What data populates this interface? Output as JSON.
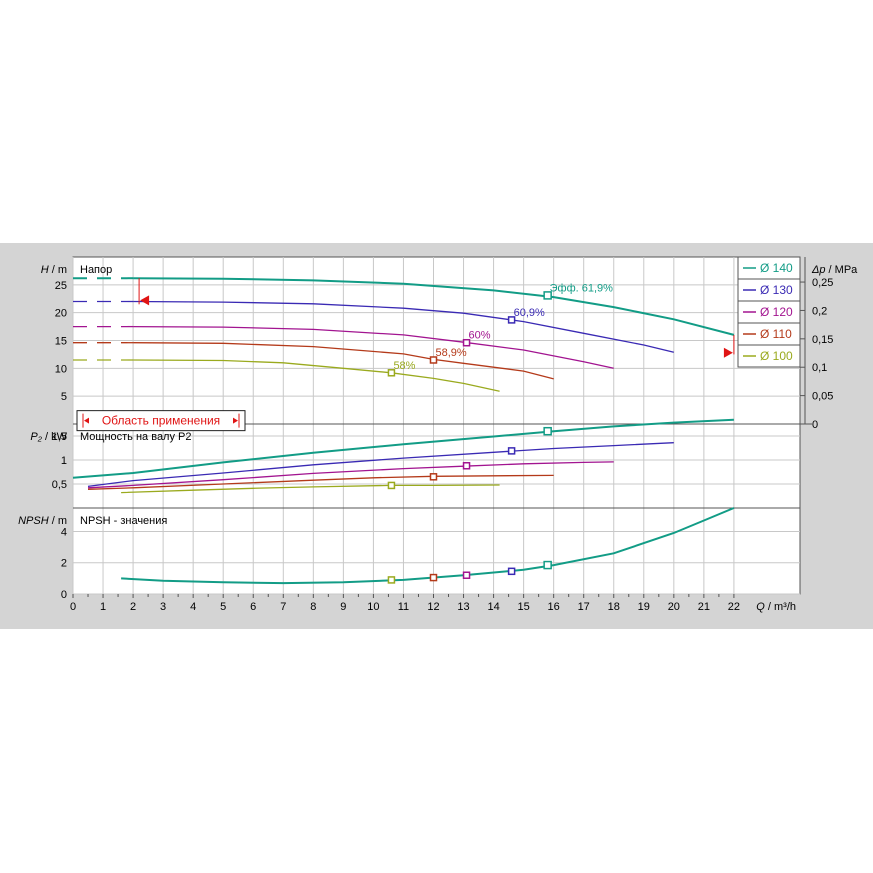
{
  "chart_data": {
    "type": "line",
    "x_axis": {
      "label_var": "Q",
      "label_unit": "m³/h",
      "ticks": [
        0,
        1,
        2,
        3,
        4,
        5,
        6,
        7,
        8,
        9,
        10,
        11,
        12,
        13,
        14,
        15,
        16,
        17,
        18,
        19,
        20,
        21,
        22
      ],
      "range": [
        0,
        24.2
      ]
    },
    "panels": {
      "head": {
        "title": "Напор",
        "y_var": "H",
        "y_unit": "m",
        "ticks": [
          5,
          10,
          15,
          20,
          25
        ],
        "range": [
          0,
          30
        ],
        "right_axis": {
          "var": "Δp",
          "unit": "MPa",
          "ticks": [
            "0",
            "0,05",
            "0,1",
            "0,15",
            "0,2",
            "0,25"
          ]
        },
        "application_range_label": "Область применения"
      },
      "power": {
        "title": "Мощность на валу P2",
        "y_var": "P₂",
        "y_unit": "kW",
        "ticks": [
          "0,5",
          "1",
          "1,5"
        ],
        "tick_values": [
          0.5,
          1,
          1.5
        ],
        "range": [
          0,
          1.75
        ]
      },
      "npsh": {
        "title": "NPSH - значения",
        "y_var": "NPSH",
        "y_unit": "m",
        "ticks": [
          0,
          2,
          4
        ],
        "range": [
          0,
          5.5
        ]
      }
    },
    "legend": {
      "position": "top-right",
      "entries": [
        "Ø 140",
        "Ø 130",
        "Ø 120",
        "Ø 110",
        "Ø 100"
      ]
    },
    "series": [
      {
        "name": "Ø 140",
        "color": "#129c86",
        "head": [
          [
            0,
            26.2
          ],
          [
            2,
            26.2
          ],
          [
            5,
            26.1
          ],
          [
            8,
            25.8
          ],
          [
            11,
            25.2
          ],
          [
            14,
            24.0
          ],
          [
            16,
            22.8
          ],
          [
            18,
            21.0
          ],
          [
            20,
            18.8
          ],
          [
            22,
            16.0
          ]
        ],
        "power": [
          [
            0,
            0.63
          ],
          [
            2,
            0.73
          ],
          [
            5,
            0.95
          ],
          [
            8,
            1.15
          ],
          [
            11,
            1.33
          ],
          [
            14,
            1.49
          ],
          [
            16,
            1.6
          ],
          [
            18,
            1.7
          ],
          [
            20,
            1.78
          ],
          [
            22,
            1.84
          ]
        ],
        "npsh": [
          [
            1.6,
            1.0
          ],
          [
            3,
            0.85
          ],
          [
            5,
            0.75
          ],
          [
            7,
            0.7
          ],
          [
            9,
            0.75
          ],
          [
            11,
            0.9
          ],
          [
            13,
            1.2
          ],
          [
            15,
            1.55
          ],
          [
            16,
            1.85
          ],
          [
            18,
            2.6
          ],
          [
            20,
            3.9
          ],
          [
            21,
            4.7
          ],
          [
            22,
            5.5
          ]
        ],
        "bep": {
          "label": "Эфф.  61,9%",
          "q": 15.8,
          "h": 23.1,
          "p": 1.6,
          "npsh": 1.85
        }
      },
      {
        "name": "Ø 130",
        "color": "#3a2ab4",
        "head": [
          [
            0,
            22.0
          ],
          [
            2,
            22.0
          ],
          [
            5,
            21.9
          ],
          [
            8,
            21.6
          ],
          [
            11,
            20.8
          ],
          [
            13,
            19.9
          ],
          [
            15,
            18.4
          ],
          [
            17,
            16.3
          ],
          [
            19,
            14.2
          ],
          [
            20,
            12.9
          ]
        ],
        "power": [
          [
            0.5,
            0.45
          ],
          [
            2,
            0.57
          ],
          [
            5,
            0.73
          ],
          [
            8,
            0.9
          ],
          [
            11,
            1.04
          ],
          [
            14,
            1.16
          ],
          [
            16,
            1.24
          ],
          [
            18,
            1.3
          ],
          [
            20,
            1.36
          ]
        ],
        "bep": {
          "label": "60,9%",
          "q": 14.6,
          "h": 18.7,
          "p": 1.19,
          "npsh": 1.45
        }
      },
      {
        "name": "Ø 120",
        "color": "#a21490",
        "head": [
          [
            0,
            17.5
          ],
          [
            2,
            17.5
          ],
          [
            5,
            17.4
          ],
          [
            8,
            17.0
          ],
          [
            11,
            16.0
          ],
          [
            13,
            14.7
          ],
          [
            15,
            13.3
          ],
          [
            17,
            11.2
          ],
          [
            18,
            10.0
          ]
        ],
        "power": [
          [
            0.5,
            0.42
          ],
          [
            2,
            0.47
          ],
          [
            5,
            0.59
          ],
          [
            8,
            0.72
          ],
          [
            11,
            0.82
          ],
          [
            13,
            0.87
          ],
          [
            15,
            0.92
          ],
          [
            17,
            0.95
          ],
          [
            18,
            0.96
          ]
        ],
        "bep": {
          "label": "60%",
          "q": 13.1,
          "h": 14.6,
          "p": 0.88,
          "npsh": 1.2
        }
      },
      {
        "name": "Ø 110",
        "color": "#b43a1a",
        "head": [
          [
            0,
            14.6
          ],
          [
            2,
            14.6
          ],
          [
            5,
            14.5
          ],
          [
            8,
            13.9
          ],
          [
            11,
            12.6
          ],
          [
            12,
            11.6
          ],
          [
            13,
            10.9
          ],
          [
            15,
            9.5
          ],
          [
            16,
            8.1
          ]
        ],
        "power": [
          [
            0.5,
            0.39
          ],
          [
            2,
            0.42
          ],
          [
            5,
            0.5
          ],
          [
            8,
            0.58
          ],
          [
            10,
            0.63
          ],
          [
            12,
            0.66
          ],
          [
            14,
            0.67
          ],
          [
            16,
            0.68
          ]
        ],
        "bep": {
          "label": "58,9%",
          "q": 12.0,
          "h": 11.5,
          "p": 0.65,
          "npsh": 1.05
        }
      },
      {
        "name": "Ø 100",
        "color": "#9aaa1e",
        "head": [
          [
            0,
            11.5
          ],
          [
            2,
            11.5
          ],
          [
            5,
            11.4
          ],
          [
            7,
            11.0
          ],
          [
            9,
            10.0
          ],
          [
            10.6,
            9.2
          ],
          [
            12,
            8.2
          ],
          [
            13,
            7.3
          ],
          [
            14.2,
            5.9
          ]
        ],
        "power": [
          [
            1.6,
            0.32
          ],
          [
            4,
            0.37
          ],
          [
            6,
            0.41
          ],
          [
            8,
            0.44
          ],
          [
            10.6,
            0.47
          ],
          [
            12,
            0.47
          ],
          [
            14.2,
            0.48
          ]
        ],
        "bep": {
          "label": "58%",
          "q": 10.6,
          "h": 9.2,
          "p": 0.47,
          "npsh": 0.9
        }
      }
    ]
  }
}
